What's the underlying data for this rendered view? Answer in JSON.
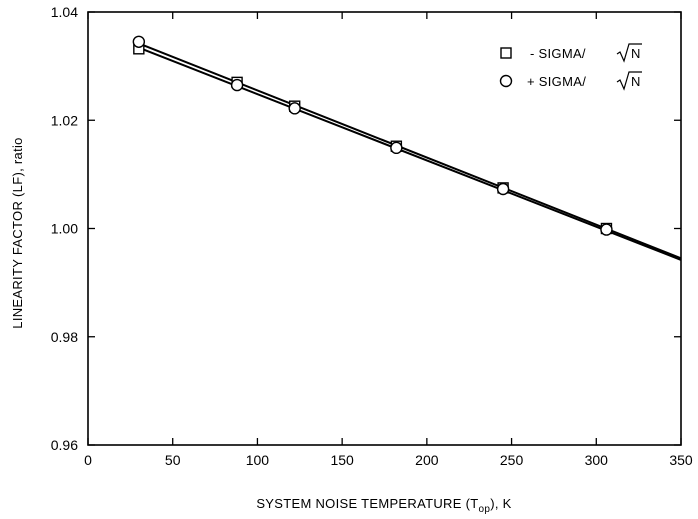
{
  "chart_data": {
    "type": "line",
    "xlabel": "SYSTEM NOISE TEMPERATURE (T",
    "xlabel_sub": "op",
    "xlabel_suffix": "), K",
    "ylabel": "LINEARITY FACTOR (LF), ratio",
    "xlim": [
      0,
      350
    ],
    "ylim": [
      0.96,
      1.04
    ],
    "x_ticks": [
      0,
      50,
      100,
      150,
      200,
      250,
      300,
      350
    ],
    "x_tick_labels": [
      "0",
      "50",
      "100",
      "150",
      "200",
      "250",
      "300",
      "350"
    ],
    "y_ticks": [
      0.96,
      0.98,
      1.0,
      1.02,
      1.04
    ],
    "y_tick_labels": [
      "0.96",
      "0.98",
      "1.00",
      "1.02",
      "1.04"
    ],
    "grid": false,
    "legend_position": "top-right",
    "series": [
      {
        "name": "- SIGMA/√N",
        "legend_prefix": "- SIGMA/",
        "legend_radicand": "N",
        "marker": "square",
        "x": [
          30,
          88,
          122,
          182,
          245,
          306
        ],
        "y": [
          1.0332,
          1.027,
          1.0226,
          1.0152,
          1.0075,
          1.0
        ]
      },
      {
        "name": "+ SIGMA/√N",
        "legend_prefix": "+ SIGMA/",
        "legend_radicand": "N",
        "marker": "circle",
        "x": [
          30,
          88,
          122,
          182,
          245,
          306
        ],
        "y": [
          1.0345,
          1.0265,
          1.0222,
          1.0149,
          1.0073,
          0.9998
        ]
      }
    ],
    "fit_lines": [
      {
        "x": [
          30,
          350
        ],
        "y": [
          1.0342,
          0.9945
        ]
      },
      {
        "x": [
          30,
          350
        ],
        "y": [
          1.0334,
          0.9942
        ]
      }
    ]
  }
}
